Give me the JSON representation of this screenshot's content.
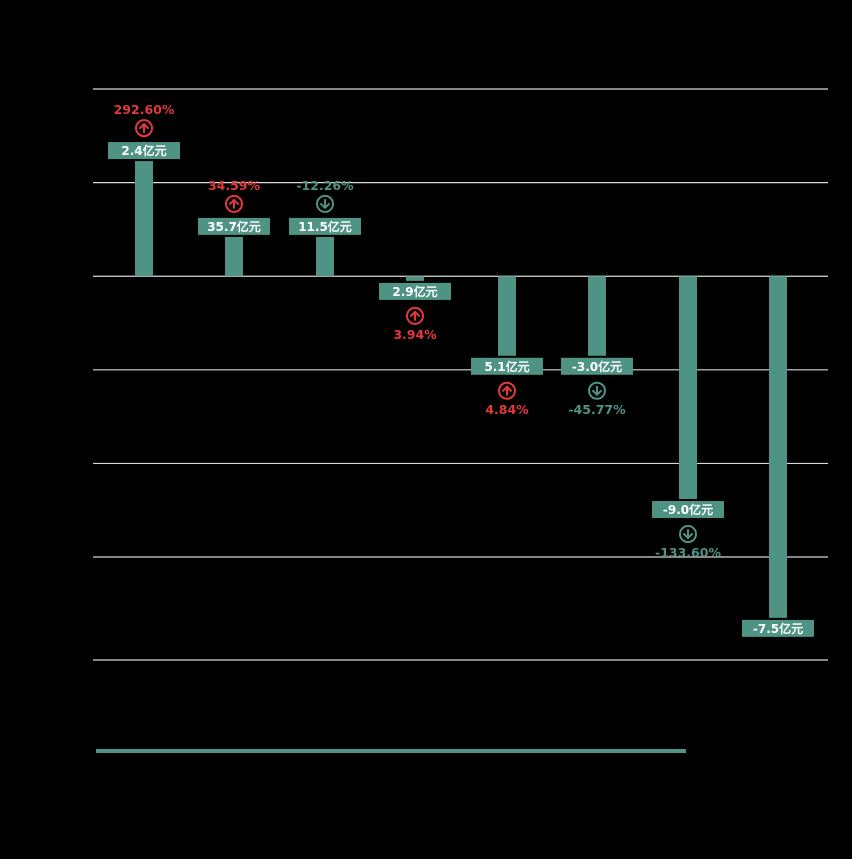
{
  "colors": {
    "background": "#000000",
    "bar": "#4e9384",
    "label_box": "#4e9384",
    "label_text": "#ffffff",
    "up": "#e23a3a",
    "down": "#4e9384",
    "grid": "#d8d8d8"
  },
  "chart_data": {
    "type": "bar",
    "title": "",
    "xlabel": "",
    "ylabel": "",
    "grid": true,
    "axis_labels_visible": false,
    "ylim": [
      -4.1,
      2.0
    ],
    "categories": [
      "",
      "",
      "",
      "",
      "",
      "",
      "",
      ""
    ],
    "values": [
      1.23,
      0.42,
      0.42,
      -0.05,
      -0.85,
      -0.85,
      -2.38,
      -3.65
    ],
    "bar_labels": [
      "2.4亿元",
      "35.7亿元",
      "11.5亿元",
      "2.9亿元",
      "5.1亿元",
      "-3.0亿元",
      "-9.0亿元",
      "-7.5亿元"
    ],
    "changes": [
      {
        "text": "292.60%",
        "direction": "up"
      },
      {
        "text": "34.59%",
        "direction": "up"
      },
      {
        "text": "-12.26%",
        "direction": "down"
      },
      {
        "text": "3.94%",
        "direction": "up"
      },
      {
        "text": "4.84%",
        "direction": "up"
      },
      {
        "text": "-45.77%",
        "direction": "down"
      },
      {
        "text": "-133.60%",
        "direction": "down"
      },
      null
    ],
    "gridlines": [
      2.0,
      1.0,
      0.0,
      -1.0,
      -2.0,
      -3.0,
      -4.1
    ]
  }
}
